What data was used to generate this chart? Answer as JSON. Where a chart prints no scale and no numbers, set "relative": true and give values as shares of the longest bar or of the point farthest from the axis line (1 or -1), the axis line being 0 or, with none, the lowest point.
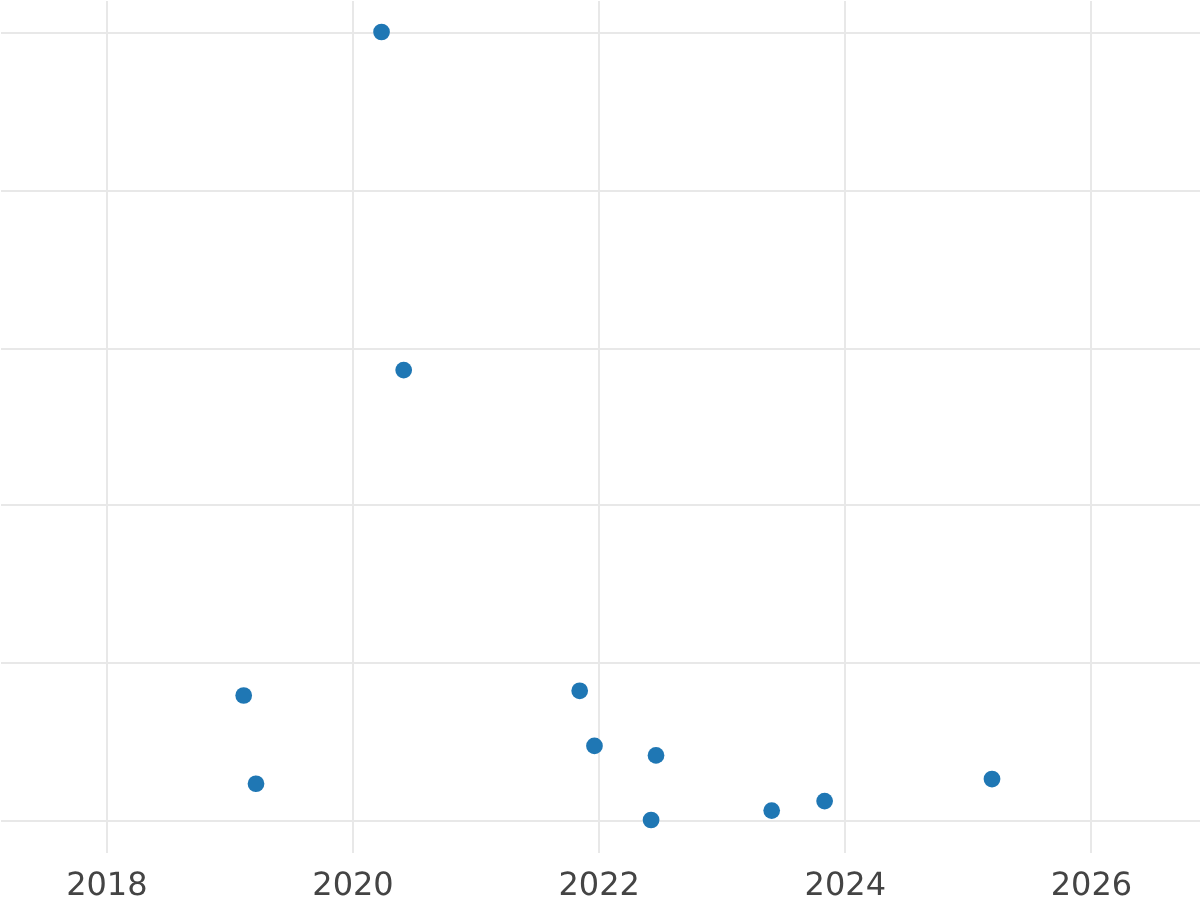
{
  "chart_data": {
    "type": "scatter",
    "relative": true,
    "x": [
      2019.12,
      2019.22,
      2020.24,
      2020.42,
      2021.85,
      2021.97,
      2022.47,
      2022.43,
      2023.41,
      2023.84,
      2025.2
    ],
    "series": [
      {
        "color": "#1f77b4",
        "values": [
          0.158,
          0.046,
          1,
          0.571,
          0.164,
          0.094,
          0.082,
          0,
          0.012,
          0.024,
          0.052
        ]
      }
    ],
    "xlim": [
      2017.14,
      2026.89
    ],
    "xticks": [
      2018,
      2020,
      2022,
      2024,
      2026
    ],
    "grid": true,
    "marker": "circle",
    "legend": false
  }
}
